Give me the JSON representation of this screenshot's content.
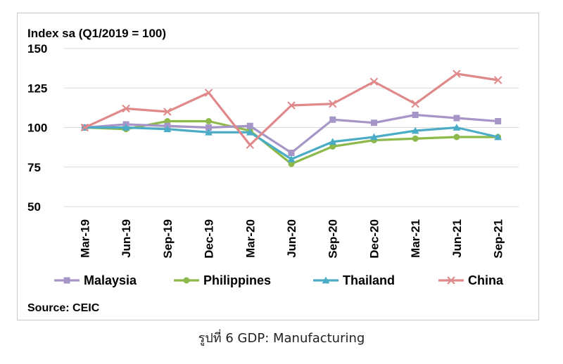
{
  "caption": "รูปที่ 6 GDP: Manufacturing",
  "chart_data": {
    "type": "line",
    "title": "",
    "ylabel": "Index sa (Q1/2019 = 100)",
    "xlabel": "",
    "ylim": [
      50,
      150
    ],
    "yticks": [
      50,
      75,
      100,
      125,
      150
    ],
    "grid": true,
    "categories": [
      "Mar-19",
      "Jun-19",
      "Sep-19",
      "Dec-19",
      "Mar-20",
      "Jun-20",
      "Sep-20",
      "Dec-20",
      "Mar-21",
      "Jun-21",
      "Sep-21"
    ],
    "series": [
      {
        "name": "Malaysia",
        "color": "#a696c8",
        "marker": "square",
        "values": [
          100,
          102,
          101,
          100,
          101,
          84,
          105,
          103,
          108,
          106,
          104
        ]
      },
      {
        "name": "Philippines",
        "color": "#8db84a",
        "marker": "circle",
        "values": [
          100,
          99,
          104,
          104,
          98,
          77,
          88,
          92,
          93,
          94,
          94
        ]
      },
      {
        "name": "Thailand",
        "color": "#4bacc6",
        "marker": "triangle",
        "values": [
          100,
          100,
          99,
          97,
          97,
          80,
          91,
          94,
          98,
          100,
          94
        ]
      },
      {
        "name": "China",
        "color": "#e0898b",
        "marker": "x",
        "values": [
          100,
          112,
          110,
          122,
          89,
          114,
          115,
          129,
          115,
          134,
          130
        ]
      }
    ],
    "legend_position": "bottom",
    "source": "Source: CEIC"
  }
}
